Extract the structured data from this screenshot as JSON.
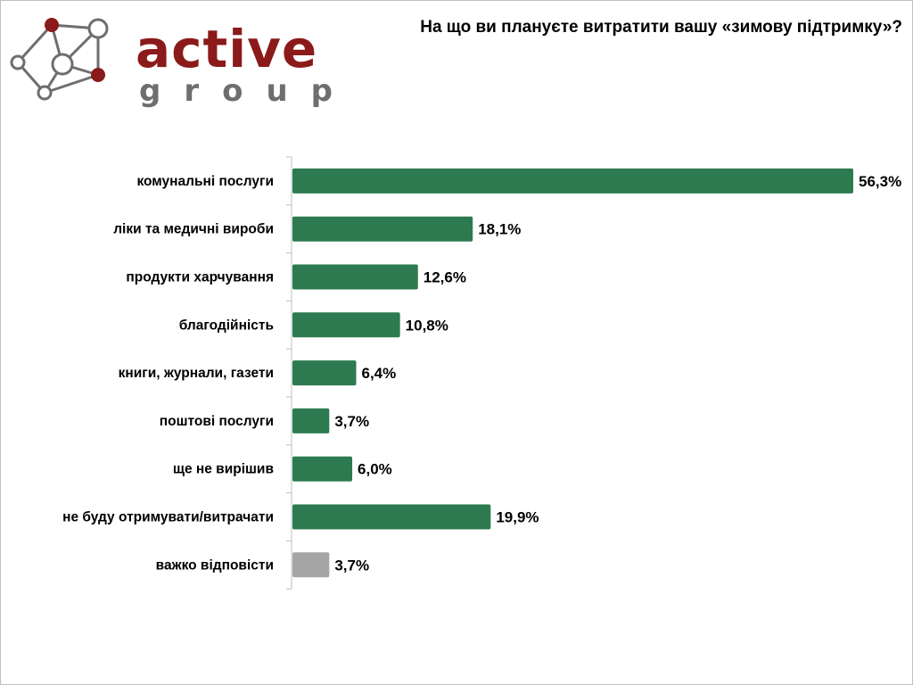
{
  "brand": {
    "name": "active",
    "subtitle": "group",
    "colors": {
      "primary": "#8b1a1a",
      "secondary": "#6e6e6e",
      "node_dark": "#8b1a1a",
      "node_light": "#ffffff"
    }
  },
  "chart_data": {
    "type": "bar",
    "orientation": "horizontal",
    "title": "На що ви плануєте витратити вашу «зимову підтримку»?",
    "categories": [
      "комунальні послуги",
      "ліки та медичні вироби",
      "продукти харчування",
      "благодійність",
      "книги, журнали, газети",
      "поштові послуги",
      "ще не вирішив",
      "не буду отримувати/витрачати",
      "важко відповісти"
    ],
    "values": [
      56.3,
      18.1,
      12.6,
      10.8,
      6.4,
      3.7,
      6.0,
      19.9,
      3.7
    ],
    "value_labels": [
      "56,3%",
      "18,1%",
      "12,6%",
      "10,8%",
      "6,4%",
      "3,7%",
      "6,0%",
      "19,9%",
      "3,7%"
    ],
    "bar_colors": [
      "#2d7a50",
      "#2d7a50",
      "#2d7a50",
      "#2d7a50",
      "#2d7a50",
      "#2d7a50",
      "#2d7a50",
      "#2d7a50",
      "#a6a6a6"
    ],
    "xlim": [
      0,
      56.3
    ],
    "xlabel": "",
    "ylabel": "",
    "grid": false,
    "legend": "none"
  }
}
